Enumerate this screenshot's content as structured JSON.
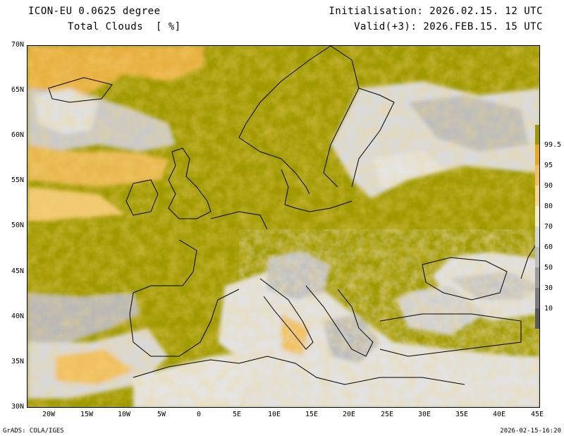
{
  "header": {
    "model": "ICON-EU 0.0625 degree",
    "variable": "Total Clouds  [ %]",
    "initialisation": "Initialisation: 2026.02.15. 12 UTC",
    "valid": "Valid(+3): 2026.FEB.15. 15 UTC"
  },
  "axes": {
    "lat_labels": [
      "70N",
      "65N",
      "60N",
      "55N",
      "50N",
      "45N",
      "40N",
      "35N",
      "30N"
    ],
    "lon_labels": [
      "20W",
      "15W",
      "10W",
      "5W",
      "0",
      "5E",
      "10E",
      "15E",
      "20E",
      "25E",
      "30E",
      "35E",
      "40E",
      "45E"
    ]
  },
  "colorbar": {
    "labels": [
      "99.5",
      "95",
      "90",
      "80",
      "70",
      "60",
      "50",
      "30",
      "10"
    ],
    "colors": [
      "#9c9600",
      "#e8a820",
      "#f0c060",
      "#f5d896",
      "#f0efc8",
      "#d8d8d8",
      "#bcbcbc",
      "#9a9a9a",
      "#7c7c7c",
      "#5a5a5a"
    ]
  },
  "colors": {
    "cloud_full": "#a09a00",
    "clear": "#e4e4e4",
    "coast": "#000000"
  },
  "footer": {
    "left": "GrADS: COLA/IGES",
    "right": "2026-02-15-16:20"
  }
}
